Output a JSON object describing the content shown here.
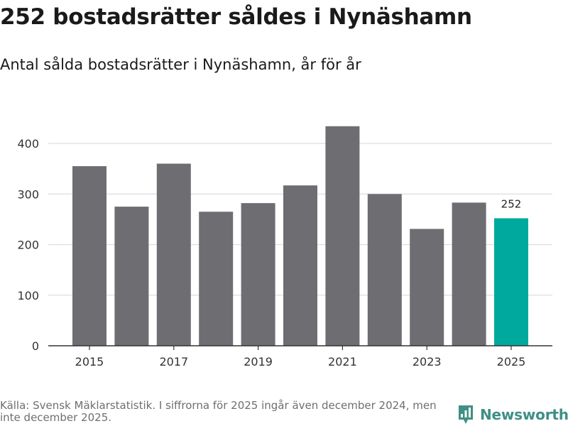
{
  "title": "252 bostadsrätter såldes i Nynäshamn",
  "subtitle": "Antal sålda bostadsrätter i Nynäshamn, år för år",
  "footer": "Källa: Svensk Mäklarstatistik. I siffrorna för 2025 ingår även december 2024, men inte december 2025.",
  "logo": {
    "text": "Newsworthy",
    "icon": "newsworthy-logo-icon"
  },
  "colors": {
    "bar": "#6e6d72",
    "highlight": "#00a99d",
    "grid": "#dddddd",
    "axis": "#333333"
  },
  "chart_data": {
    "type": "bar",
    "title": "252 bostadsrätter såldes i Nynäshamn",
    "xlabel": "",
    "ylabel": "",
    "categories": [
      "2015",
      "2016",
      "2017",
      "2018",
      "2019",
      "2020",
      "2021",
      "2022",
      "2023",
      "2024",
      "2025"
    ],
    "values": [
      355,
      275,
      360,
      265,
      282,
      317,
      434,
      300,
      231,
      283,
      252
    ],
    "x_tick_labels": [
      "2015",
      "2017",
      "2019",
      "2021",
      "2023",
      "2025"
    ],
    "y_ticks": [
      0,
      100,
      200,
      300,
      400
    ],
    "ylim": [
      0,
      440
    ],
    "grid": true,
    "highlight_category": "2025",
    "annotations": [
      {
        "category": "2025",
        "text": "252"
      }
    ]
  }
}
